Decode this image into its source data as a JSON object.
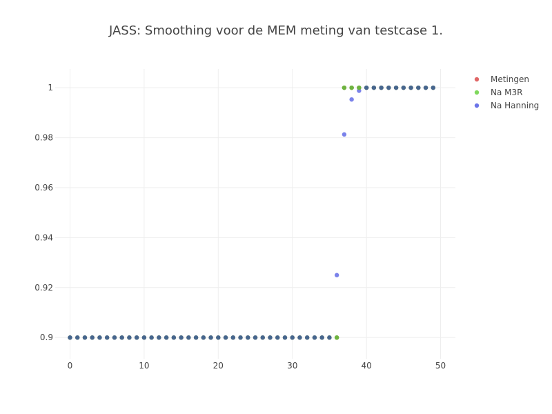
{
  "chart_data": {
    "type": "scatter",
    "title": "JASS: Smoothing voor de MEM meting van testcase 1.",
    "xlabel": "",
    "ylabel": "",
    "xlim": [
      -2,
      52
    ],
    "ylim": [
      0.8915,
      1.0075
    ],
    "x_ticks": [
      0,
      10,
      20,
      30,
      40,
      50
    ],
    "y_ticks": [
      0.9,
      0.92,
      0.94,
      0.96,
      0.98,
      1
    ],
    "grid": true,
    "legend_position": "top-right",
    "series": [
      {
        "name": "Metingen",
        "color": "#e06666",
        "x": [
          0,
          1,
          2,
          3,
          4,
          5,
          6,
          7,
          8,
          9,
          10,
          11,
          12,
          13,
          14,
          15,
          16,
          17,
          18,
          19,
          20,
          21,
          22,
          23,
          24,
          25,
          26,
          27,
          28,
          29,
          30,
          31,
          32,
          33,
          34,
          35,
          36,
          37,
          38,
          39,
          40,
          41,
          42,
          43,
          44,
          45,
          46,
          47,
          48,
          49
        ],
        "y": [
          0.9,
          0.9,
          0.9,
          0.9,
          0.9,
          0.9,
          0.9,
          0.9,
          0.9,
          0.9,
          0.9,
          0.9,
          0.9,
          0.9,
          0.9,
          0.9,
          0.9,
          0.9,
          0.9,
          0.9,
          0.9,
          0.9,
          0.9,
          0.9,
          0.9,
          0.9,
          0.9,
          0.9,
          0.9,
          0.9,
          0.9,
          0.9,
          0.9,
          0.9,
          0.9,
          0.9,
          0.9,
          1,
          1,
          1,
          1,
          1,
          1,
          1,
          1,
          1,
          1,
          1,
          1,
          1
        ]
      },
      {
        "name": "Na M3R",
        "color": "#7fd85c",
        "x": [
          0,
          1,
          2,
          3,
          4,
          5,
          6,
          7,
          8,
          9,
          10,
          11,
          12,
          13,
          14,
          15,
          16,
          17,
          18,
          19,
          20,
          21,
          22,
          23,
          24,
          25,
          26,
          27,
          28,
          29,
          30,
          31,
          32,
          33,
          34,
          35,
          36,
          37,
          38,
          39,
          40,
          41,
          42,
          43,
          44,
          45,
          46,
          47,
          48,
          49
        ],
        "y": [
          0.9,
          0.9,
          0.9,
          0.9,
          0.9,
          0.9,
          0.9,
          0.9,
          0.9,
          0.9,
          0.9,
          0.9,
          0.9,
          0.9,
          0.9,
          0.9,
          0.9,
          0.9,
          0.9,
          0.9,
          0.9,
          0.9,
          0.9,
          0.9,
          0.9,
          0.9,
          0.9,
          0.9,
          0.9,
          0.9,
          0.9,
          0.9,
          0.9,
          0.9,
          0.9,
          0.9,
          0.9,
          1,
          1,
          1,
          1,
          1,
          1,
          1,
          1,
          1,
          1,
          1,
          1,
          1
        ]
      },
      {
        "name": "Na Hanning",
        "color": "#6b74e8",
        "x": [
          0,
          1,
          2,
          3,
          4,
          5,
          6,
          7,
          8,
          9,
          10,
          11,
          12,
          13,
          14,
          15,
          16,
          17,
          18,
          19,
          20,
          21,
          22,
          23,
          24,
          25,
          26,
          27,
          28,
          29,
          30,
          31,
          32,
          33,
          34,
          35,
          36,
          37,
          38,
          39,
          40,
          41,
          42,
          43,
          44,
          45,
          46,
          47,
          48,
          49
        ],
        "y": [
          0.9,
          0.9,
          0.9,
          0.9,
          0.9,
          0.9,
          0.9,
          0.9,
          0.9,
          0.9,
          0.9,
          0.9,
          0.9,
          0.9,
          0.9,
          0.9,
          0.9,
          0.9,
          0.9,
          0.9,
          0.9,
          0.9,
          0.9,
          0.9,
          0.9,
          0.9,
          0.9,
          0.9,
          0.9,
          0.9,
          0.9,
          0.9,
          0.9,
          0.9,
          0.9,
          0.9,
          0.925,
          0.9813,
          0.9953,
          0.9988,
          1,
          1,
          1,
          1,
          1,
          1,
          1,
          1,
          1,
          1
        ]
      }
    ],
    "overlap_color": "#3e5a94"
  }
}
